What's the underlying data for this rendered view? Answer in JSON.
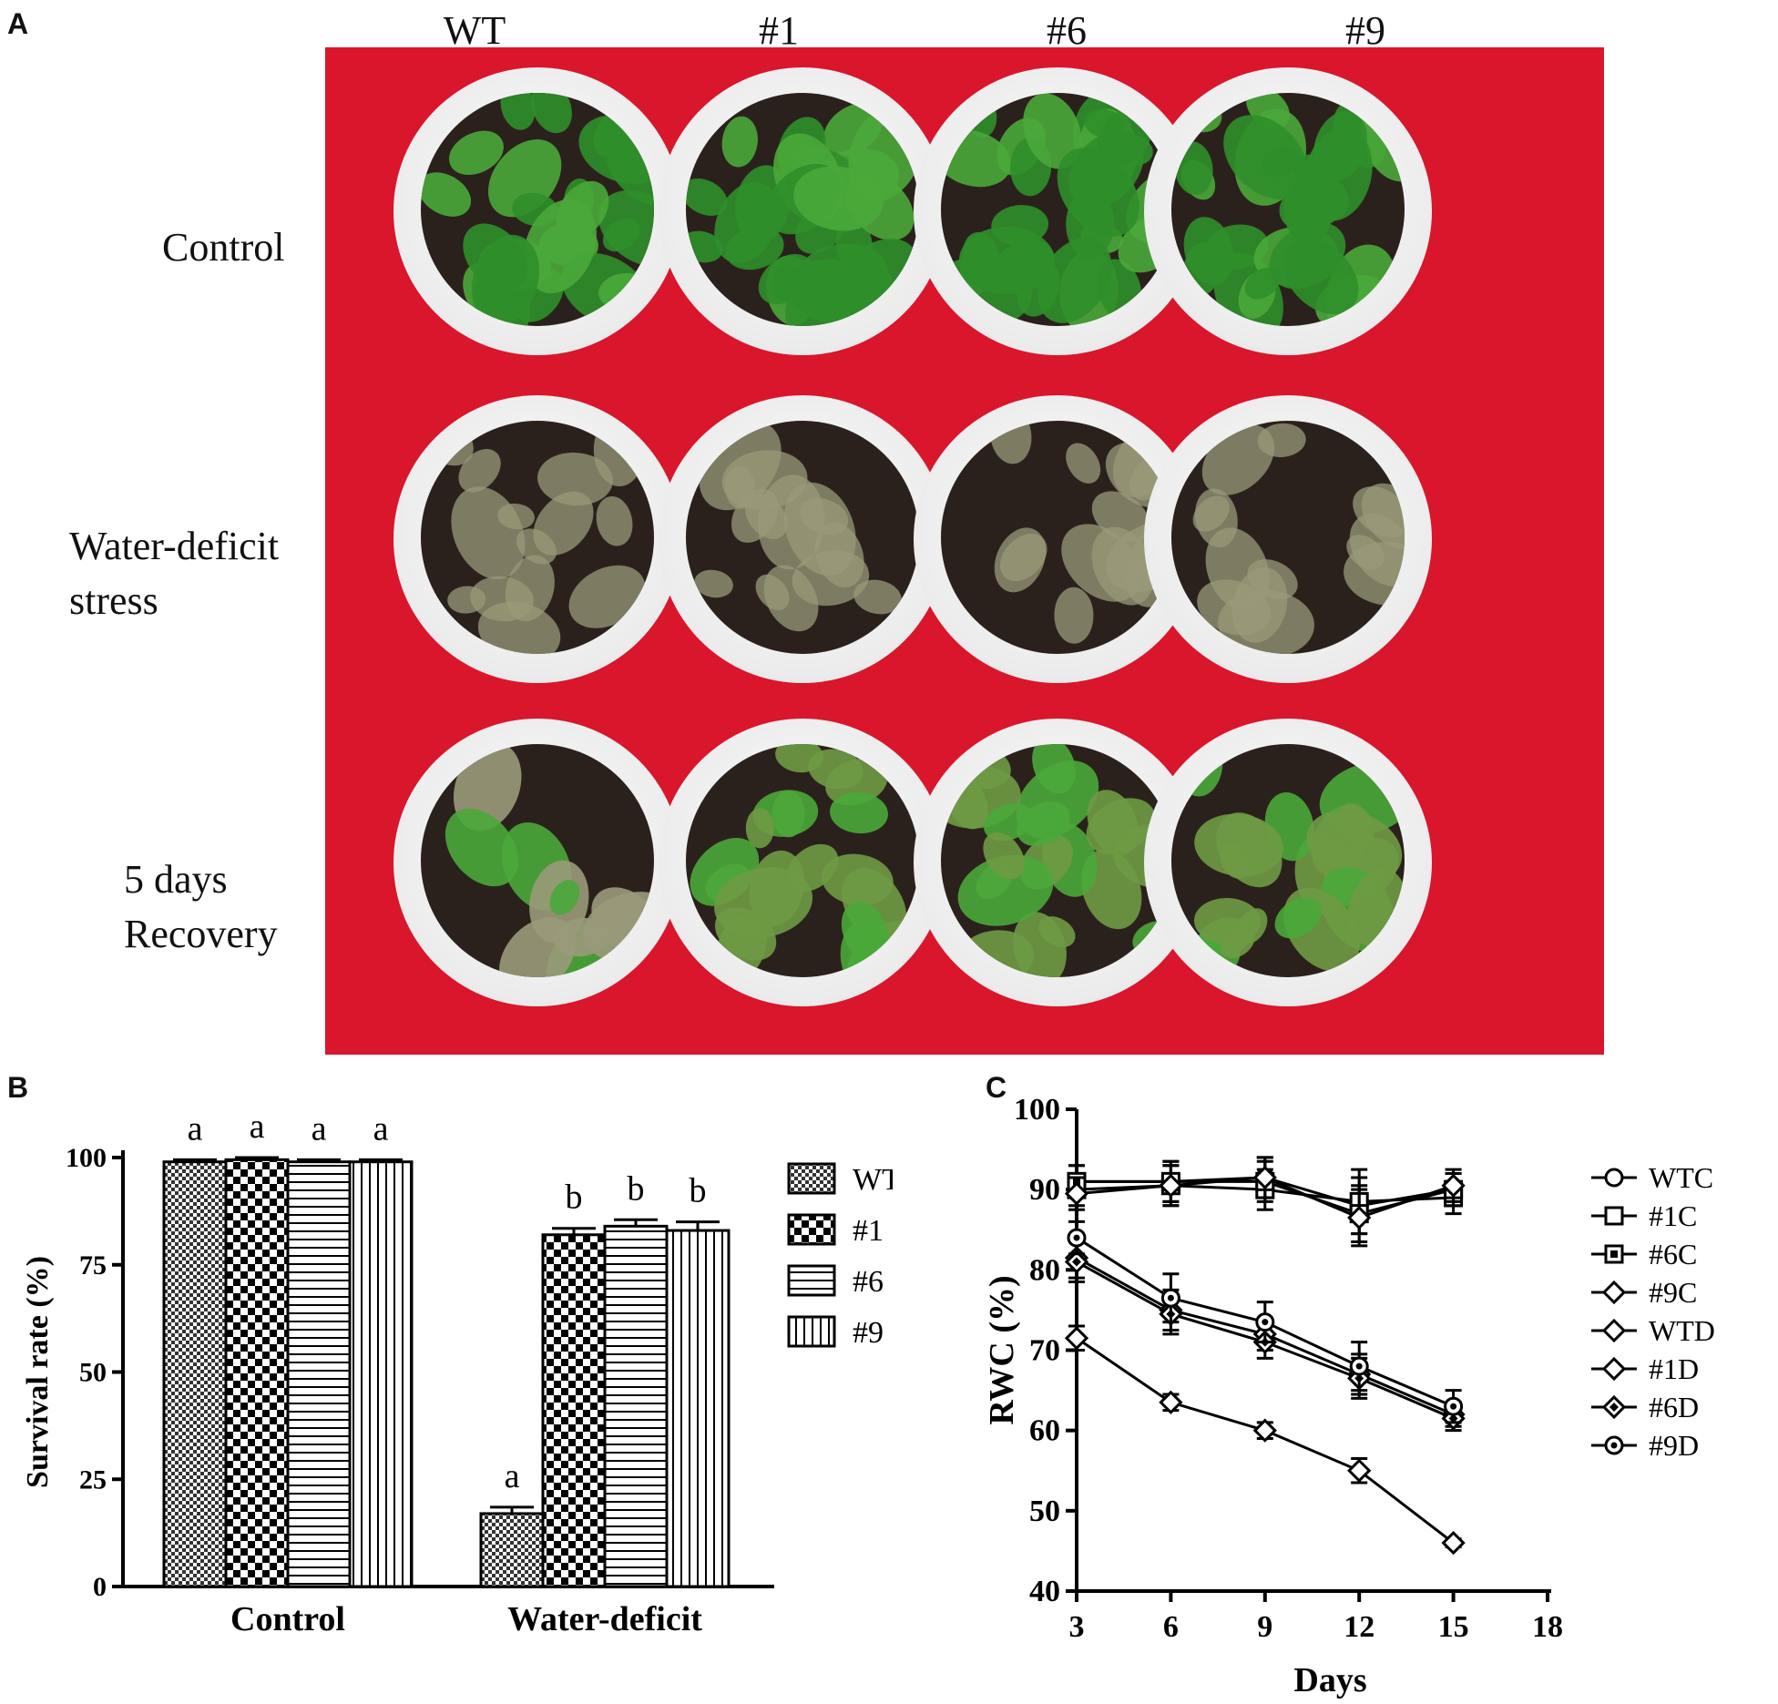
{
  "panel_a": {
    "letter": "A",
    "columns": [
      "WT",
      "#1",
      "#6",
      "#9"
    ],
    "rows": [
      {
        "lines": [
          "Control"
        ],
        "state": "healthy"
      },
      {
        "lines": [
          "Water-deficit",
          "stress"
        ],
        "state": "stressed"
      },
      {
        "lines": [
          "5 days",
          "Recovery"
        ],
        "state": "recovery"
      }
    ],
    "colors": {
      "background": "#d9162c",
      "soil": "#2b211c",
      "healthy": "#2f8f2a",
      "stressed": "#9a9a7a",
      "recovery": "#6f9a45"
    }
  },
  "panel_b": {
    "letter": "B"
  },
  "panel_c": {
    "letter": "C"
  },
  "chart_data": [
    {
      "type": "bar",
      "panel": "B",
      "ylabel": "Survival rate (%)",
      "categories": [
        "Control",
        "Water-deficit"
      ],
      "ylim": [
        0,
        100
      ],
      "yticks": [
        "0",
        "25",
        "50",
        "75",
        "100"
      ],
      "series": [
        {
          "name": "WT",
          "pattern": "fine-check",
          "values": [
            99,
            17
          ],
          "errors": [
            0.5,
            1.5
          ],
          "letters": [
            "a",
            "a"
          ]
        },
        {
          "name": "#1",
          "pattern": "checker",
          "values": [
            99.5,
            82
          ],
          "errors": [
            0.5,
            1.5
          ],
          "letters": [
            "a",
            "b"
          ]
        },
        {
          "name": "#6",
          "pattern": "horizontal-lines",
          "values": [
            99,
            84
          ],
          "errors": [
            0.5,
            1.5
          ],
          "letters": [
            "a",
            "b"
          ]
        },
        {
          "name": "#9",
          "pattern": "vertical-lines",
          "values": [
            99,
            83
          ],
          "errors": [
            0.5,
            2
          ],
          "letters": [
            "a",
            "b"
          ]
        }
      ],
      "legend": "right"
    },
    {
      "type": "line",
      "panel": "C",
      "xlabel": "Days",
      "ylabel": "RWC (%)",
      "x": [
        3,
        6,
        9,
        12,
        15
      ],
      "xlim": [
        3,
        18
      ],
      "xticks": [
        "3",
        "6",
        "9",
        "12",
        "15",
        "18"
      ],
      "ylim": [
        40,
        100
      ],
      "yticks": [
        "40",
        "50",
        "60",
        "70",
        "80",
        "90",
        "100"
      ],
      "series": [
        {
          "name": "WTC",
          "marker": "circle",
          "values": [
            91,
            91,
            91.5,
            88,
            90
          ],
          "errors": [
            2,
            2.5,
            2.5,
            3.5,
            2
          ]
        },
        {
          "name": "#1C",
          "marker": "square",
          "values": [
            90,
            90.5,
            90,
            88.5,
            89
          ],
          "errors": [
            2,
            2.5,
            2.5,
            4,
            2
          ]
        },
        {
          "name": "#6C",
          "marker": "square-filled",
          "values": [
            91,
            91,
            91,
            87,
            90
          ],
          "errors": [
            2,
            2.5,
            2.5,
            3.5,
            2
          ]
        },
        {
          "name": "#9C",
          "marker": "diamond",
          "values": [
            89.5,
            90.5,
            91.5,
            86.5,
            90.5
          ],
          "errors": [
            2,
            2.5,
            2.5,
            3.5,
            2
          ]
        },
        {
          "name": "WTD",
          "marker": "diamond",
          "values": [
            71.5,
            63.5,
            60,
            55,
            46
          ],
          "errors": [
            1.5,
            1,
            1,
            1.5,
            0.5
          ]
        },
        {
          "name": "#1D",
          "marker": "diamond",
          "values": [
            81.5,
            75,
            72,
            67,
            62
          ],
          "errors": [
            2.5,
            2.5,
            2,
            2.5,
            1.5
          ]
        },
        {
          "name": "#6D",
          "marker": "diamond-filled",
          "values": [
            81,
            74.5,
            71,
            66.5,
            61.5
          ],
          "errors": [
            2.5,
            2.5,
            2,
            2.5,
            1.5
          ]
        },
        {
          "name": "#9D",
          "marker": "circle-dot",
          "values": [
            84,
            76.5,
            73.5,
            68,
            63
          ],
          "errors": [
            2,
            3,
            2.5,
            3,
            2
          ]
        }
      ],
      "legend": "right"
    }
  ]
}
